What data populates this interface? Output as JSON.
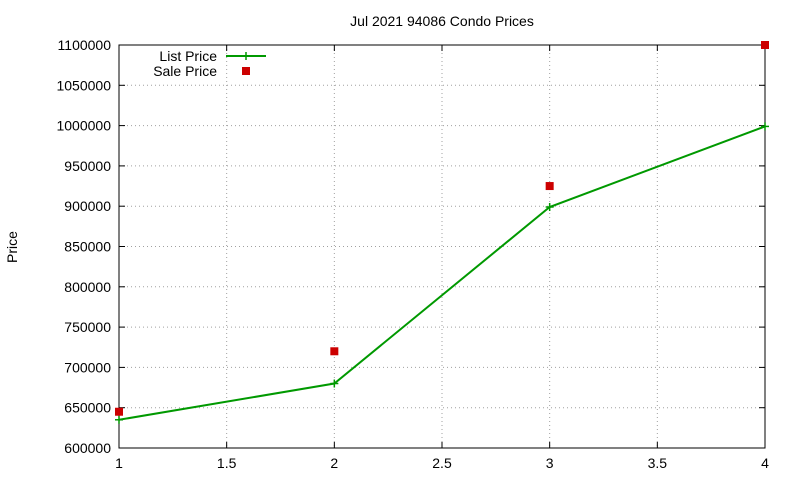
{
  "chart_data": {
    "type": "line",
    "title": "Jul 2021 94086 Condo Prices",
    "xlabel": "",
    "ylabel": "Price",
    "xlim": [
      1,
      4
    ],
    "ylim": [
      600000,
      1100000
    ],
    "x_ticks": [
      "1",
      "1.5",
      "2",
      "2.5",
      "3",
      "3.5",
      "4"
    ],
    "y_ticks": [
      "600000",
      "650000",
      "700000",
      "750000",
      "800000",
      "850000",
      "900000",
      "950000",
      "1000000",
      "1050000",
      "1100000"
    ],
    "grid": true,
    "legend_position": "top-left",
    "series": [
      {
        "name": "List Price",
        "style": "line-with-plus-markers",
        "color": "#009900",
        "x": [
          1,
          2,
          3,
          4
        ],
        "y": [
          635000,
          680000,
          899000,
          999000
        ]
      },
      {
        "name": "Sale Price",
        "style": "square-markers",
        "color": "#cc0000",
        "x": [
          1,
          2,
          3,
          4
        ],
        "y": [
          645000,
          720000,
          925000,
          1100000
        ]
      }
    ]
  }
}
